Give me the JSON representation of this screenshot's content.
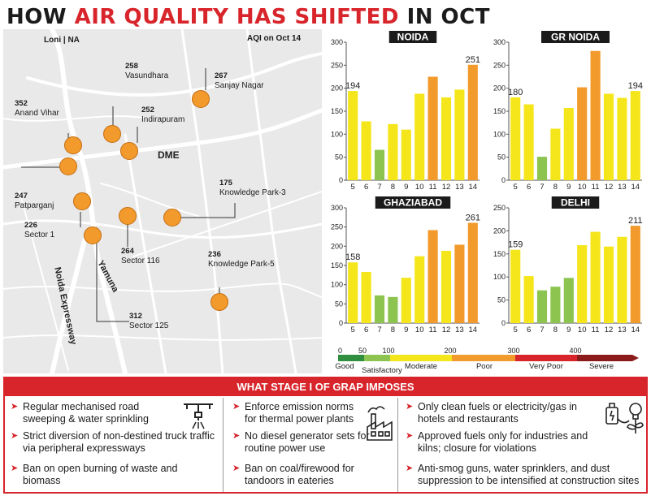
{
  "headline": {
    "part1": "HOW ",
    "part2": "AIR QUALITY HAS SHIFTED",
    "part3": " IN OCT"
  },
  "map": {
    "corner_left": "Loni | NA",
    "corner_right": "AQI on Oct 14",
    "roads": {
      "dme": "DME",
      "yamuna": "Yamuna",
      "noida_expressway": "Noida Expressway"
    },
    "locations": [
      {
        "name": "Vasundhara",
        "aqi": "258"
      },
      {
        "name": "Sanjay Nagar",
        "aqi": "267"
      },
      {
        "name": "Anand Vihar",
        "aqi": "352"
      },
      {
        "name": "Indirapuram",
        "aqi": "252"
      },
      {
        "name": "Patparganj",
        "aqi": "247"
      },
      {
        "name": "Sector 1",
        "aqi": "226"
      },
      {
        "name": "Knowledge Park-3",
        "aqi": "175"
      },
      {
        "name": "Sector 116",
        "aqi": "264"
      },
      {
        "name": "Knowledge Park-5",
        "aqi": "236"
      },
      {
        "name": "Sector 125",
        "aqi": "312"
      }
    ],
    "marker_color": "#f39a2c"
  },
  "chart_data": [
    {
      "type": "bar",
      "title": "NOIDA",
      "categories": [
        "5",
        "6",
        "7",
        "8",
        "9",
        "10",
        "11",
        "12",
        "13",
        "14"
      ],
      "values": [
        194,
        128,
        66,
        122,
        110,
        188,
        225,
        180,
        197,
        251
      ],
      "labels": {
        "0": "194",
        "9": "251"
      },
      "ylim": [
        0,
        300
      ],
      "yticks": [
        0,
        50,
        100,
        150,
        200,
        250,
        300
      ]
    },
    {
      "type": "bar",
      "title": "GR NOIDA",
      "categories": [
        "5",
        "6",
        "7",
        "8",
        "9",
        "10",
        "11",
        "12",
        "13",
        "14"
      ],
      "values": [
        180,
        165,
        51,
        112,
        157,
        202,
        281,
        188,
        179,
        194
      ],
      "labels": {
        "0": "180",
        "9": "194"
      },
      "ylim": [
        0,
        300
      ],
      "yticks": [
        0,
        50,
        100,
        150,
        200,
        250,
        300
      ]
    },
    {
      "type": "bar",
      "title": "GHAZIABAD",
      "categories": [
        "5",
        "6",
        "7",
        "8",
        "9",
        "10",
        "11",
        "12",
        "13",
        "14"
      ],
      "values": [
        158,
        133,
        72,
        68,
        118,
        174,
        242,
        188,
        204,
        261
      ],
      "labels": {
        "0": "158",
        "9": "261"
      },
      "ylim": [
        0,
        300
      ],
      "yticks": [
        0,
        50,
        100,
        150,
        200,
        250,
        300
      ]
    },
    {
      "type": "bar",
      "title": "DELHI",
      "categories": [
        "5",
        "6",
        "7",
        "8",
        "9",
        "10",
        "11",
        "12",
        "13",
        "14"
      ],
      "values": [
        159,
        102,
        71,
        79,
        98,
        169,
        198,
        166,
        187,
        211
      ],
      "labels": {
        "0": "159",
        "9": "211"
      },
      "ylim": [
        0,
        250
      ],
      "yticks": [
        0,
        50,
        100,
        150,
        200,
        250
      ]
    }
  ],
  "aqi_legend": {
    "ticks": [
      "0",
      "50",
      "100",
      "200",
      "300",
      "400"
    ],
    "bands": [
      {
        "label": "Good",
        "color": "#2f8f3e"
      },
      {
        "label": "Satisfactory",
        "color": "#8cc44f"
      },
      {
        "label": "Moderate",
        "color": "#f5e61c"
      },
      {
        "label": "Poor",
        "color": "#f39a2c"
      },
      {
        "label": "Very Poor",
        "color": "#d8252b"
      },
      {
        "label": "Severe",
        "color": "#8b1a1a"
      }
    ]
  },
  "grap": {
    "title": "WHAT STAGE I OF GRAP IMPOSES",
    "col1": [
      "Regular mechanised road sweeping & water sprinkling",
      "Strict diversion of non-destined truck traffic via peripheral expressways",
      "Ban on open burning of waste and biomass"
    ],
    "col2": [
      "Enforce emission norms for thermal power plants",
      "No diesel generator sets for routine power use",
      "Ban on coal/firewood for tandoors in eateries"
    ],
    "col3": [
      "Only clean fuels or electricity/gas in hotels and restaurants",
      "Approved fuels only for industries and kilns; closure for violations",
      "Anti-smog guns, water sprinklers, and dust suppression to be intensified at construction sites"
    ],
    "icons": [
      "sprinkler-icon",
      "factory-icon",
      "clean-energy-icon"
    ]
  }
}
